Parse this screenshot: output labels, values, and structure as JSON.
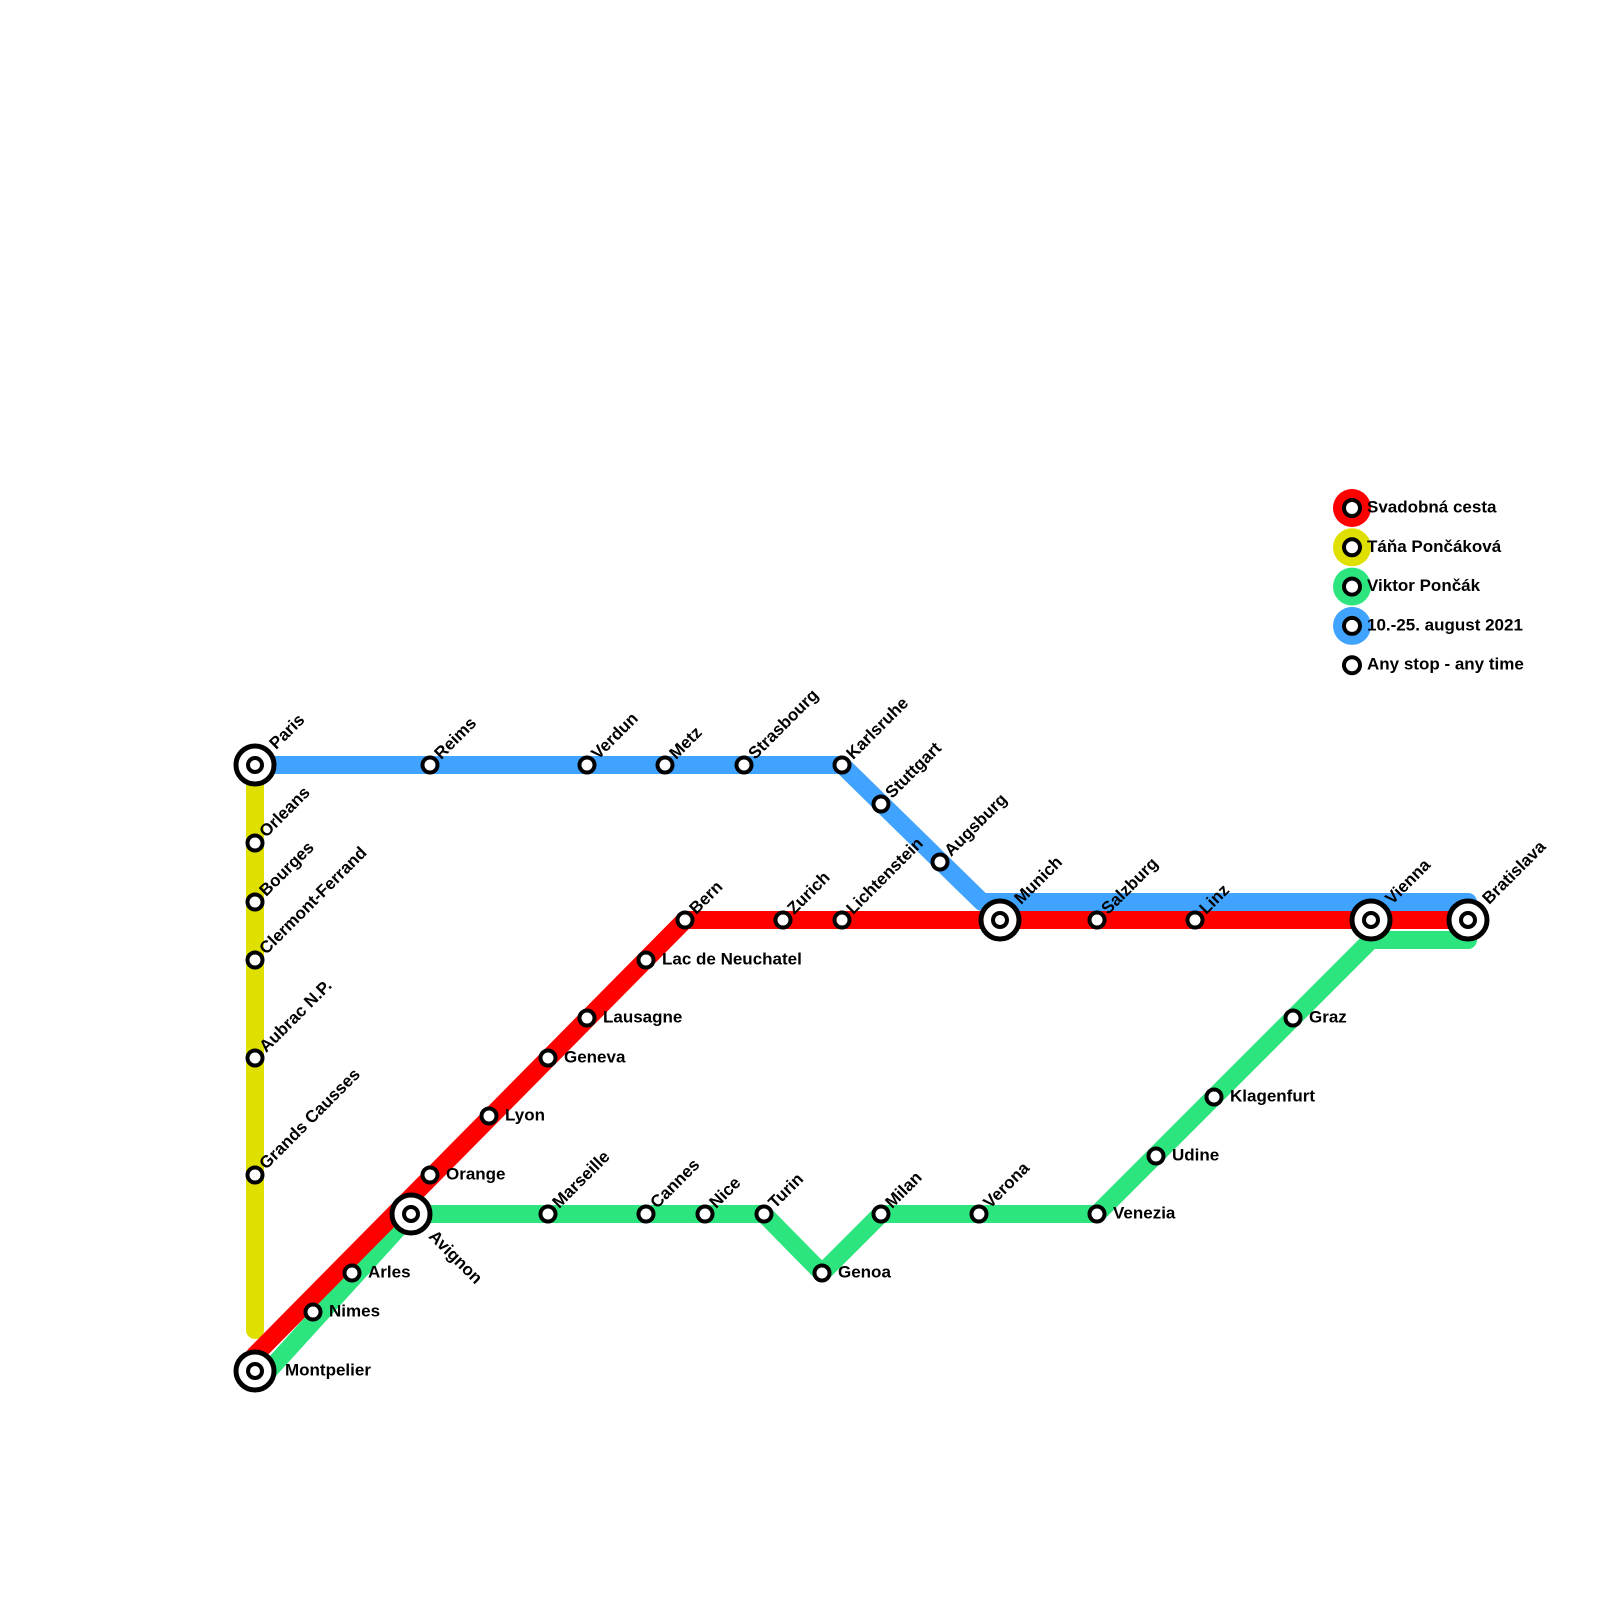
{
  "stations": [
    "Paris",
    "Reims",
    "Verdun",
    "Metz",
    "Strasbourg",
    "Karlsruhe",
    "Stuttgart",
    "Augsburg",
    "Munich",
    "Salzburg",
    "Linz",
    "Vienna",
    "Bratislava",
    "Orleans",
    "Bourges",
    "Clermont-Ferrand",
    "Aubrac N.P.",
    "Grands Causses",
    "Montpelier",
    "Nimes",
    "Arles",
    "Avignon",
    "Orange",
    "Lyon",
    "Geneva",
    "Lausagne",
    "Lac de Neuchatel",
    "Bern",
    "Zurich",
    "Lichtenstein",
    "Marseille",
    "Cannes",
    "Nice",
    "Turin",
    "Genoa",
    "Milan",
    "Verona",
    "Venezia",
    "Udine",
    "Klagenfurt",
    "Graz"
  ],
  "legend": [
    {
      "label": "Svadobná cesta",
      "color": "#ff0000"
    },
    {
      "label": "Táňa Pončáková",
      "color": "#dfe000"
    },
    {
      "label": "Viktor Pončák",
      "color": "#2de57e"
    },
    {
      "label": "10.-25. august 2021",
      "color": "#40a3ff"
    },
    {
      "label": "Any stop - any time"
    }
  ]
}
